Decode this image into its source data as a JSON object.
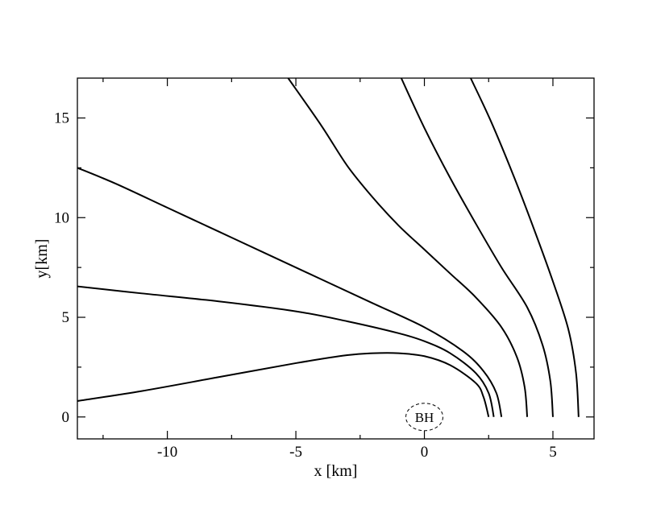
{
  "chart_data": {
    "type": "line",
    "xlabel": "x [km]",
    "ylabel": "y[km]",
    "xlim": [
      -13.5,
      6.6
    ],
    "ylim": [
      -1.1,
      17
    ],
    "x_ticks": [
      {
        "value": -10,
        "label": "-10"
      },
      {
        "value": -5,
        "label": "-5"
      },
      {
        "value": 0,
        "label": "0"
      },
      {
        "value": 5,
        "label": "5"
      }
    ],
    "y_ticks": [
      {
        "value": 0,
        "label": "0"
      },
      {
        "value": 5,
        "label": "5"
      },
      {
        "value": 10,
        "label": "10"
      },
      {
        "value": 15,
        "label": "15"
      }
    ],
    "x_minor_step": 2.5,
    "y_minor_step": 2.5,
    "grid": false,
    "annotations": [
      {
        "text": "BH",
        "x": 0,
        "y": 0,
        "shape": "dashed-ellipse"
      }
    ],
    "series": [
      {
        "x": [
          2.5,
          2.3,
          2.0,
          1.0,
          0.0,
          -1.0,
          -2.0,
          -3.0,
          -5.0,
          -8.0,
          -11.0,
          -13.5
        ],
        "y": [
          0.0,
          1.0,
          1.7,
          2.6,
          3.05,
          3.2,
          3.2,
          3.1,
          2.7,
          2.0,
          1.3,
          0.8
        ]
      },
      {
        "x": [
          2.7,
          2.5,
          2.0,
          1.0,
          0.0,
          -1.0,
          -3.0,
          -5.0,
          -8.0,
          -11.0,
          -13.5
        ],
        "y": [
          0.0,
          1.2,
          2.2,
          3.2,
          3.8,
          4.2,
          4.8,
          5.3,
          5.8,
          6.2,
          6.55
        ]
      },
      {
        "x": [
          3.0,
          2.8,
          2.3,
          1.5,
          0.0,
          -2.0,
          -4.0,
          -6.0,
          -8.0,
          -10.0,
          -12.0,
          -13.5
        ],
        "y": [
          0.0,
          1.2,
          2.3,
          3.3,
          4.5,
          5.7,
          6.9,
          8.1,
          9.3,
          10.5,
          11.7,
          12.5
        ]
      },
      {
        "x": [
          4.0,
          3.9,
          3.6,
          3.0,
          2.0,
          1.0,
          0.0,
          -1.0,
          -2.0,
          -3.0,
          -4.0,
          -5.3
        ],
        "y": [
          0.0,
          1.5,
          3.0,
          4.5,
          6.0,
          7.2,
          8.4,
          9.6,
          11.0,
          12.6,
          14.6,
          17.0
        ]
      },
      {
        "x": [
          5.0,
          4.9,
          4.6,
          4.0,
          3.0,
          2.0,
          1.0,
          0.0,
          -0.9
        ],
        "y": [
          0.0,
          1.8,
          3.6,
          5.5,
          7.5,
          9.7,
          12.0,
          14.5,
          17.0
        ]
      },
      {
        "x": [
          6.0,
          5.9,
          5.6,
          5.0,
          4.3,
          3.5,
          2.6,
          1.8
        ],
        "y": [
          0.0,
          2.2,
          4.4,
          6.8,
          9.3,
          12.0,
          14.8,
          17.0
        ]
      }
    ]
  }
}
